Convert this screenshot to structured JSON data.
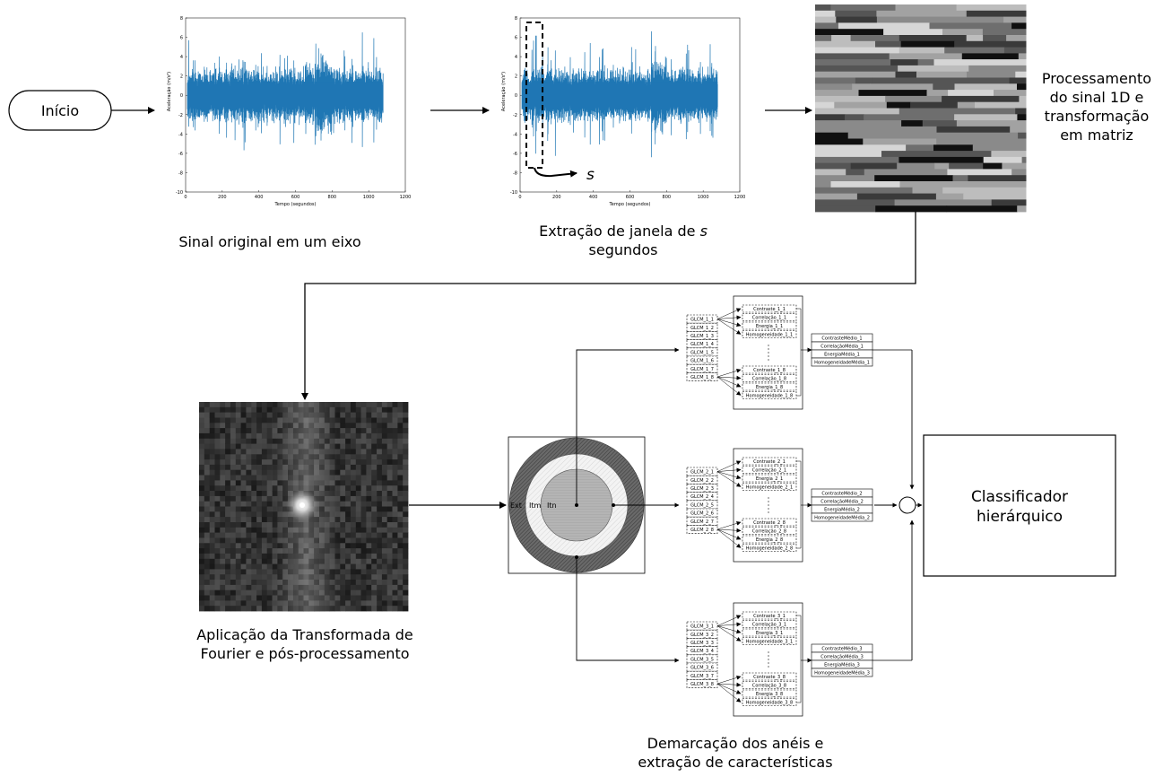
{
  "start_label": "Início",
  "step1_caption": "Sinal original em um eixo",
  "step2_caption_l1": "Extração de janela de",
  "step2_caption_s": "s",
  "step2_caption_l2": "segundos",
  "step3_caption": [
    "Processamento",
    "do sinal 1D e",
    "transformação",
    "em matriz"
  ],
  "step4_caption": [
    "Aplicação da Transformada de",
    "Fourier e pós-processamento"
  ],
  "step5_caption": [
    "Demarcação dos anéis e",
    "extração de características"
  ],
  "classifier_label": [
    "Classificador",
    "hierárquico"
  ],
  "window_label": "s",
  "plot": {
    "ylabel": "Aceleração (m/s²)",
    "xlabel": "Tempo (segundos)",
    "yticks": [
      "8",
      "6",
      "4",
      "2",
      "0",
      "-2",
      "-4",
      "-6",
      "-8",
      "-10"
    ],
    "xticks": [
      "0",
      "200",
      "400",
      "600",
      "800",
      "1000",
      "1200"
    ]
  },
  "rings": {
    "ext": "Ext",
    "itm": "Itm",
    "itn": "Itn"
  },
  "groups": [
    {
      "glcm": [
        "GLCM_1_1",
        "GLCM_1_2",
        "GLCM_1_3",
        "GLCM_1_4",
        "GLCM_1_5",
        "GLCM_1_6",
        "GLCM_1_7",
        "GLCM_1_8"
      ],
      "feat_top": [
        "Contraste_1_1",
        "Correlação_1_1",
        "Energia_1_1",
        "Homogeneidade_1_1"
      ],
      "feat_bot": [
        "Contraste_1_8",
        "Correlação_1_8",
        "Energia_1_8",
        "Homogeneidade_1_8"
      ],
      "means": [
        "ContrasteMédio_1",
        "CorrelaçãoMédia_1",
        "EnergiaMédia_1",
        "HomogeneidadeMédia_1"
      ]
    },
    {
      "glcm": [
        "GLCM_2_1",
        "GLCM_2_2",
        "GLCM_2_3",
        "GLCM_2_4",
        "GLCM_2_5",
        "GLCM_2_6",
        "GLCM_2_7",
        "GLCM_2_8"
      ],
      "feat_top": [
        "Contraste_2_1",
        "Correlação_2_1",
        "Energia_2_1",
        "Homogeneidade_2_1"
      ],
      "feat_bot": [
        "Contraste_2_8",
        "Correlação_2_8",
        "Energia_2_8",
        "Homogeneidade_2_8"
      ],
      "means": [
        "ContrasteMédio_2",
        "CorrelaçãoMédia_2",
        "EnergiaMédia_2",
        "HomogeneidadeMédia_2"
      ]
    },
    {
      "glcm": [
        "GLCM_3_1",
        "GLCM_3_2",
        "GLCM_3_3",
        "GLCM_3_4",
        "GLCM_3_5",
        "GLCM_3_6",
        "GLCM_3_7",
        "GLCM_3_8"
      ],
      "feat_top": [
        "Contraste_3_1",
        "Correlação_3_1",
        "Energia_3_1",
        "Homogeneidade_3_1"
      ],
      "feat_bot": [
        "Contraste_3_8",
        "Correlação_3_8",
        "Energia_3_8",
        "Homogeneidade_3_8"
      ],
      "means": [
        "ContrasteMédio_3",
        "CorrelaçãoMédia_3",
        "EnergiaMédia_3",
        "HomogeneidadeMédia_3"
      ]
    }
  ],
  "colors": {
    "signal": "#1f77b4",
    "line": "#000000"
  }
}
